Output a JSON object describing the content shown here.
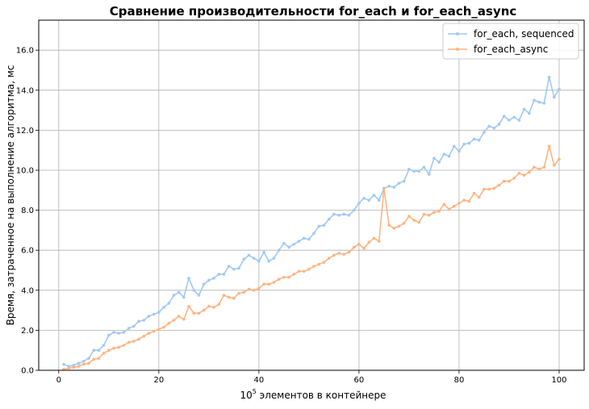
{
  "chart_data": {
    "type": "line",
    "title": "Сравнение производительности for_each и for_each_async",
    "xlabel_base": "10",
    "xlabel_exp": "5",
    "xlabel_rest": " элементов в контейнере",
    "ylabel": "Время, затраченное на выполнение алгоритма, мс",
    "xlim": [
      -4,
      105
    ],
    "ylim": [
      0,
      17.5
    ],
    "xticks": [
      0,
      20,
      40,
      60,
      80,
      100
    ],
    "xtick_labels": [
      "0",
      "20",
      "40",
      "60",
      "80",
      "100"
    ],
    "yticks": [
      0,
      2,
      4,
      6,
      8,
      10,
      12,
      14,
      16
    ],
    "ytick_labels": [
      "0.0",
      "2.0",
      "4.0",
      "6.0",
      "8.0",
      "10.0",
      "12.0",
      "14.0",
      "16.0"
    ],
    "grid": true,
    "legend_position": "top-right",
    "x": [
      1,
      2,
      3,
      4,
      5,
      6,
      7,
      8,
      9,
      10,
      11,
      12,
      13,
      14,
      15,
      16,
      17,
      18,
      19,
      20,
      21,
      22,
      23,
      24,
      25,
      26,
      27,
      28,
      29,
      30,
      31,
      32,
      33,
      34,
      35,
      36,
      37,
      38,
      39,
      40,
      41,
      42,
      43,
      44,
      45,
      46,
      47,
      48,
      49,
      50,
      51,
      52,
      53,
      54,
      55,
      56,
      57,
      58,
      59,
      60,
      61,
      62,
      63,
      64,
      65,
      66,
      67,
      68,
      69,
      70,
      71,
      72,
      73,
      74,
      75,
      76,
      77,
      78,
      79,
      80,
      81,
      82,
      83,
      84,
      85,
      86,
      87,
      88,
      89,
      90,
      91,
      92,
      93,
      94,
      95,
      96,
      97,
      98,
      99,
      100
    ],
    "series": [
      {
        "name": "for_each, sequenced",
        "color": "#a1c9f4",
        "values": [
          0.3,
          0.2,
          0.25,
          0.35,
          0.45,
          0.6,
          1.0,
          1.0,
          1.25,
          1.75,
          1.9,
          1.85,
          1.9,
          2.1,
          2.2,
          2.45,
          2.5,
          2.7,
          2.8,
          2.9,
          3.15,
          3.35,
          3.75,
          3.9,
          3.65,
          4.6,
          4.0,
          3.75,
          4.3,
          4.5,
          4.6,
          4.8,
          4.8,
          5.2,
          5.05,
          5.1,
          5.55,
          5.75,
          5.6,
          5.45,
          5.9,
          5.45,
          5.6,
          6.0,
          6.35,
          6.15,
          6.3,
          6.45,
          6.6,
          6.55,
          6.85,
          7.2,
          7.25,
          7.55,
          7.8,
          7.75,
          7.8,
          7.75,
          8.0,
          8.35,
          8.6,
          8.5,
          8.75,
          8.5,
          9.1,
          9.2,
          9.15,
          9.35,
          9.45,
          10.05,
          9.95,
          9.95,
          10.15,
          9.8,
          10.6,
          10.4,
          10.8,
          10.7,
          11.2,
          10.95,
          11.3,
          11.35,
          11.55,
          11.5,
          11.9,
          12.2,
          12.1,
          12.3,
          12.7,
          12.5,
          12.65,
          12.5,
          13.05,
          12.85,
          13.5,
          13.4,
          13.35,
          14.65,
          13.65,
          14.05
        ]
      },
      {
        "name": "for_each_async",
        "color": "#ffb482",
        "values": [
          0.05,
          0.1,
          0.15,
          0.2,
          0.3,
          0.35,
          0.55,
          0.6,
          0.85,
          1.0,
          1.1,
          1.15,
          1.25,
          1.4,
          1.45,
          1.55,
          1.7,
          1.85,
          1.95,
          2.05,
          2.15,
          2.35,
          2.5,
          2.7,
          2.55,
          3.2,
          2.85,
          2.85,
          3.0,
          3.2,
          3.15,
          3.3,
          3.75,
          3.65,
          3.6,
          3.85,
          3.9,
          4.05,
          4.0,
          4.1,
          4.3,
          4.3,
          4.4,
          4.55,
          4.65,
          4.65,
          4.8,
          4.95,
          4.95,
          5.05,
          5.2,
          5.3,
          5.4,
          5.6,
          5.75,
          5.85,
          5.8,
          5.9,
          6.15,
          6.3,
          6.1,
          6.4,
          6.6,
          6.45,
          9.1,
          7.25,
          7.1,
          7.2,
          7.35,
          7.7,
          7.5,
          7.4,
          7.8,
          7.75,
          7.9,
          7.95,
          8.3,
          8.05,
          8.2,
          8.35,
          8.5,
          8.45,
          8.85,
          8.65,
          9.05,
          9.05,
          9.1,
          9.25,
          9.45,
          9.45,
          9.6,
          9.85,
          9.75,
          9.9,
          10.15,
          10.05,
          10.15,
          11.2,
          10.25,
          10.55
        ]
      }
    ]
  }
}
